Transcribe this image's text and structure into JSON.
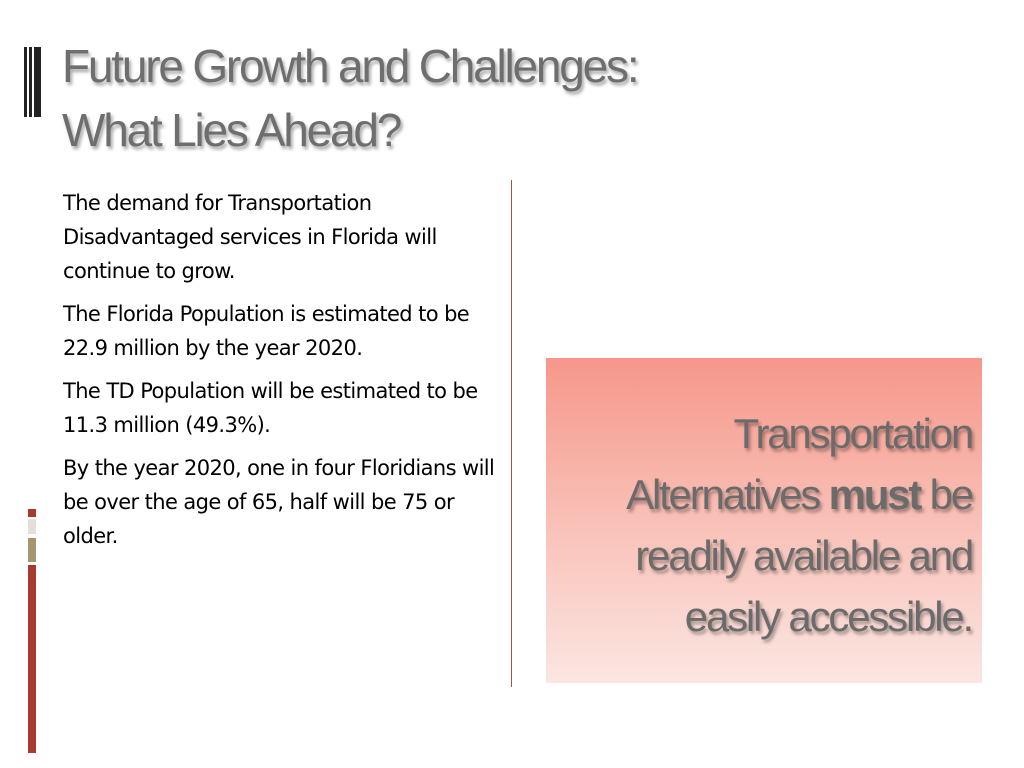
{
  "slide": {
    "title_line1": "Future Growth and Challenges:",
    "title_line2": "What Lies Ahead?",
    "paragraphs": [
      "The  demand for Transportation Disadvantaged services in Florida will continue to grow.",
      "The Florida Population is estimated to be 22.9 million by the year 2020.",
      "The TD Population will be estimated to be 11.3 million (49.3%).",
      "By the year 2020, one in four Floridians will be over the age of 65, half will be 75 or older."
    ],
    "callout": {
      "text_before": "Transportation Alternatives ",
      "emphasis": "must",
      "text_after": " be readily available and easily accessible."
    }
  },
  "colors": {
    "title": "#6e6e6e",
    "accent_red": "#a63a2c",
    "accent_tan": "#a8956f",
    "divider": "#a3563f",
    "callout_top": "#f6978a",
    "callout_bottom": "#fbe6e2"
  }
}
